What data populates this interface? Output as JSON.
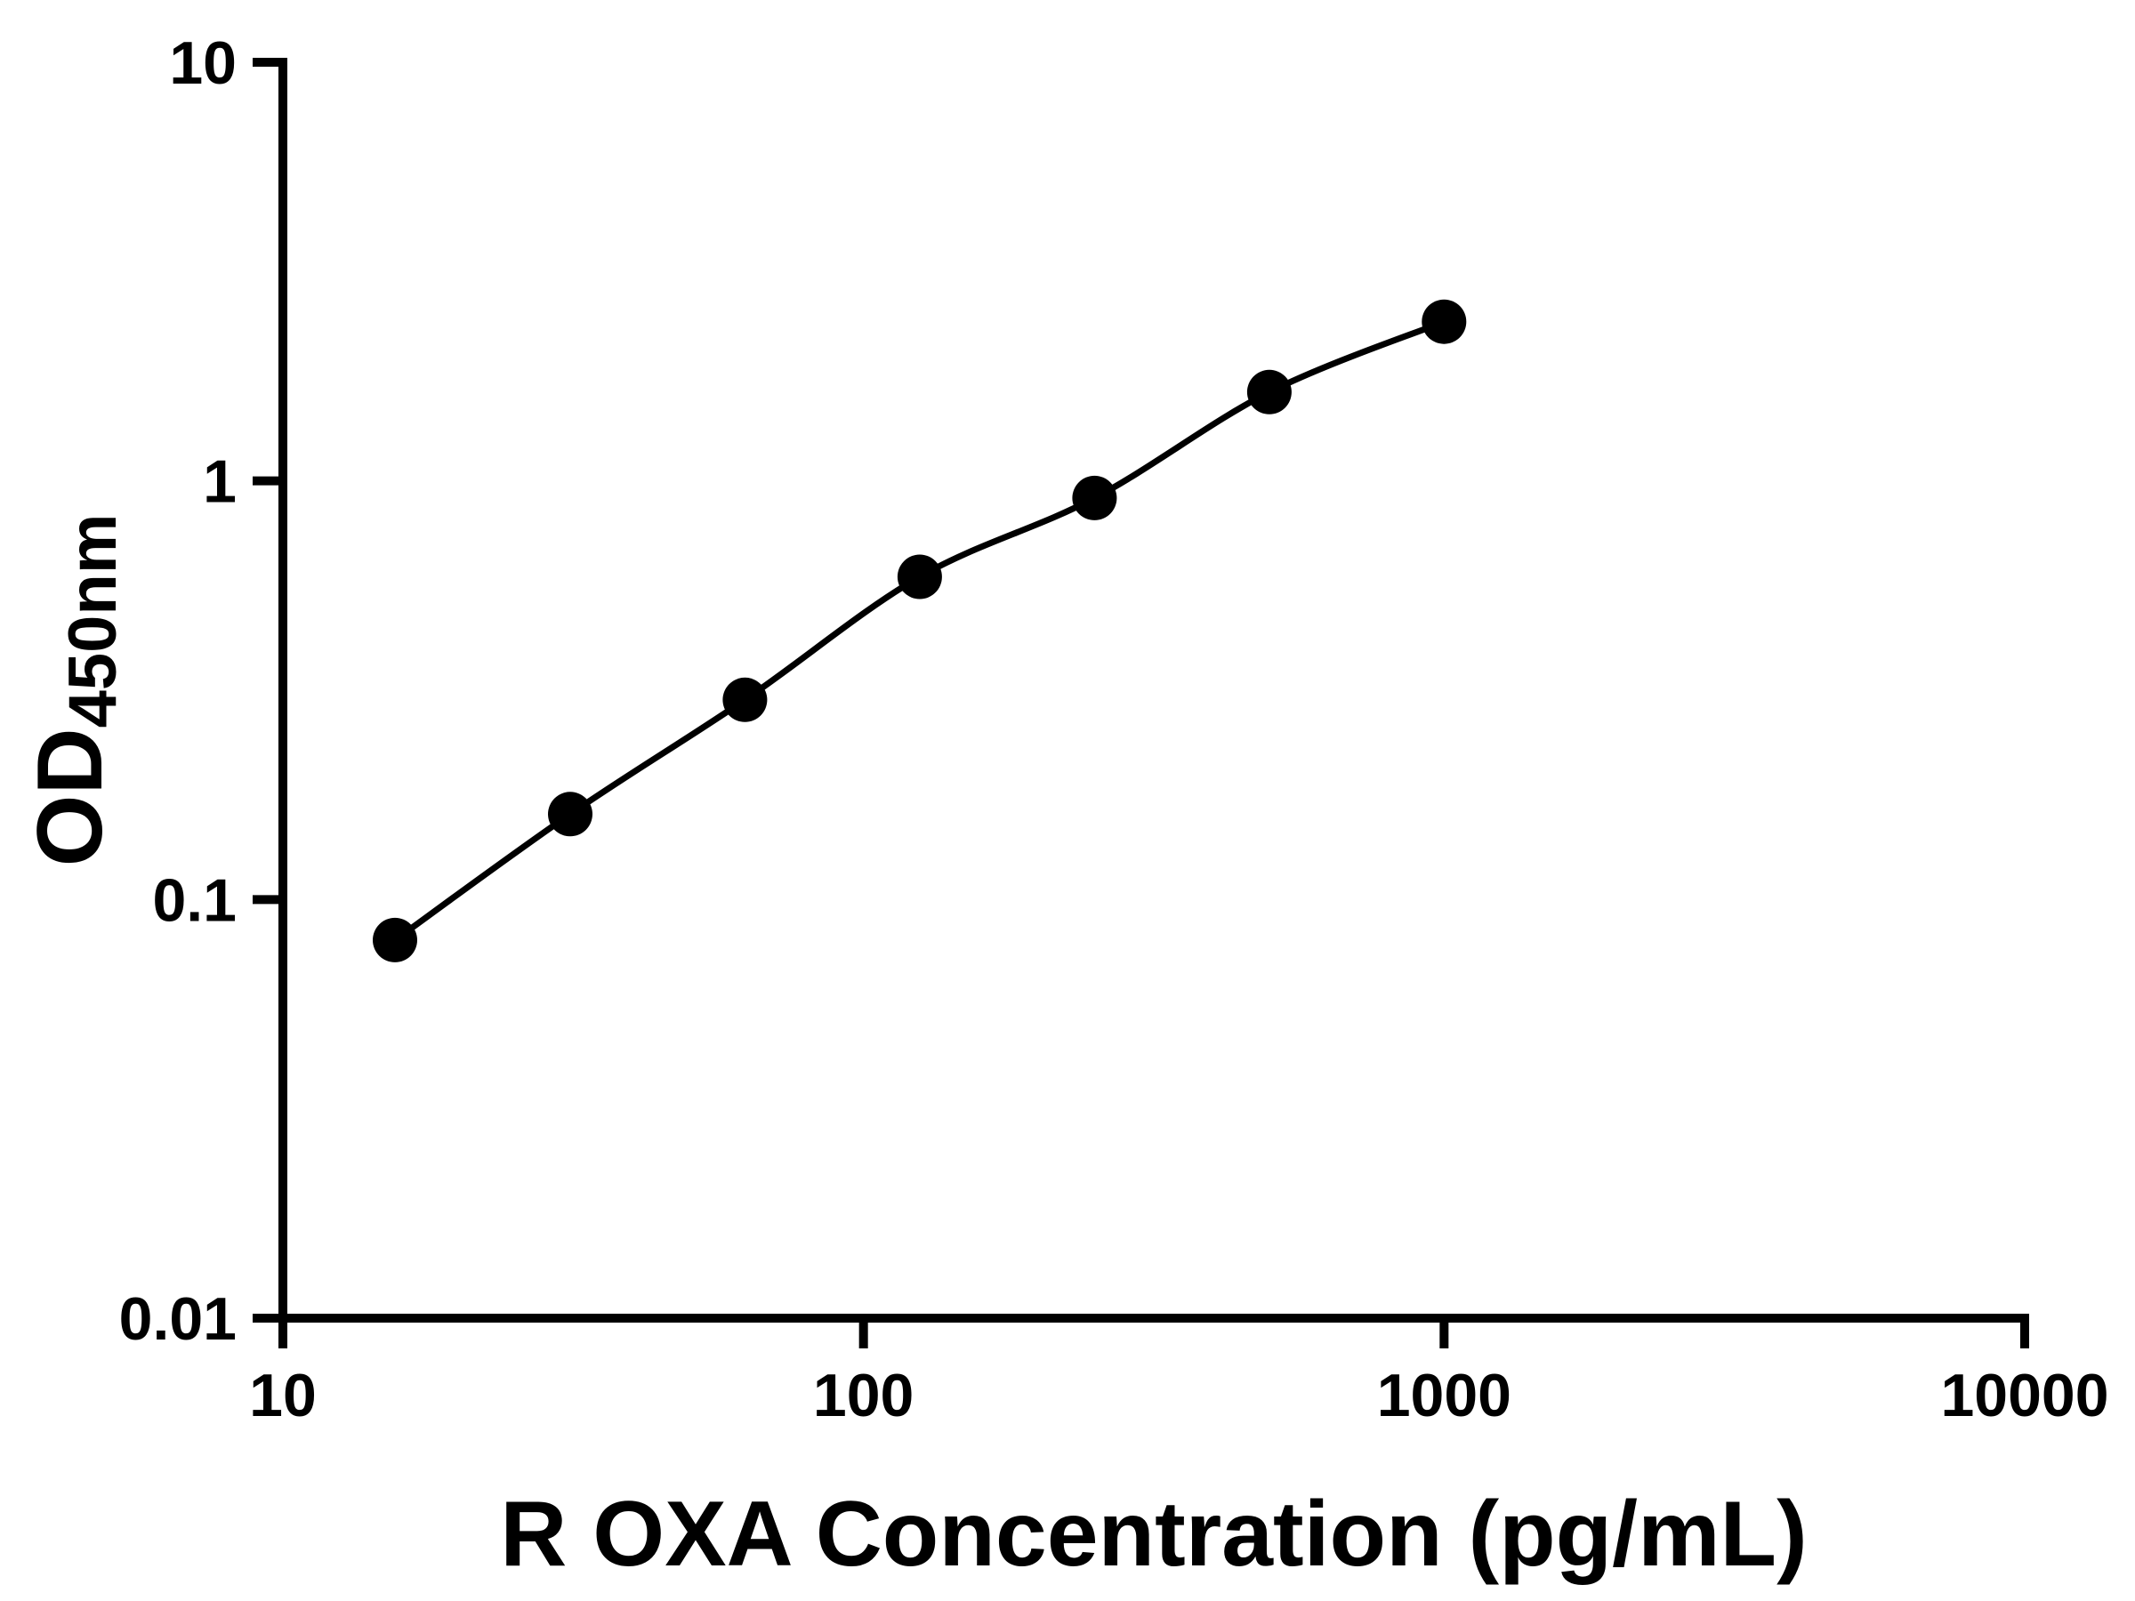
{
  "page": {
    "background": "#ffffff",
    "ink_color": "#000000"
  },
  "chart_data": {
    "type": "line",
    "subtype": "elisa-standard-curve-scatter-with-fit",
    "title": "",
    "xlabel": "R OXA Concentration (pg/mL)",
    "ylabel_main": "OD",
    "ylabel_sub": "450nm",
    "x_scale": "log10",
    "y_scale": "log10",
    "xlim": [
      10,
      10000
    ],
    "ylim": [
      0.01,
      10
    ],
    "x_ticks": [
      10,
      100,
      1000,
      10000
    ],
    "x_tick_labels": [
      "10",
      "100",
      "1000",
      "10000"
    ],
    "y_ticks": [
      0.01,
      0.1,
      1,
      10
    ],
    "y_tick_labels": [
      "0.01",
      "0.1",
      "1",
      "10"
    ],
    "grid": false,
    "legend": false,
    "color": "#000000",
    "marker": "filled-circle",
    "series": [
      {
        "x": [
          15.6,
          31.25,
          62.5,
          125,
          250,
          500,
          1000
        ],
        "y": [
          0.08,
          0.16,
          0.3,
          0.59,
          0.91,
          1.63,
          2.4
        ]
      }
    ]
  }
}
